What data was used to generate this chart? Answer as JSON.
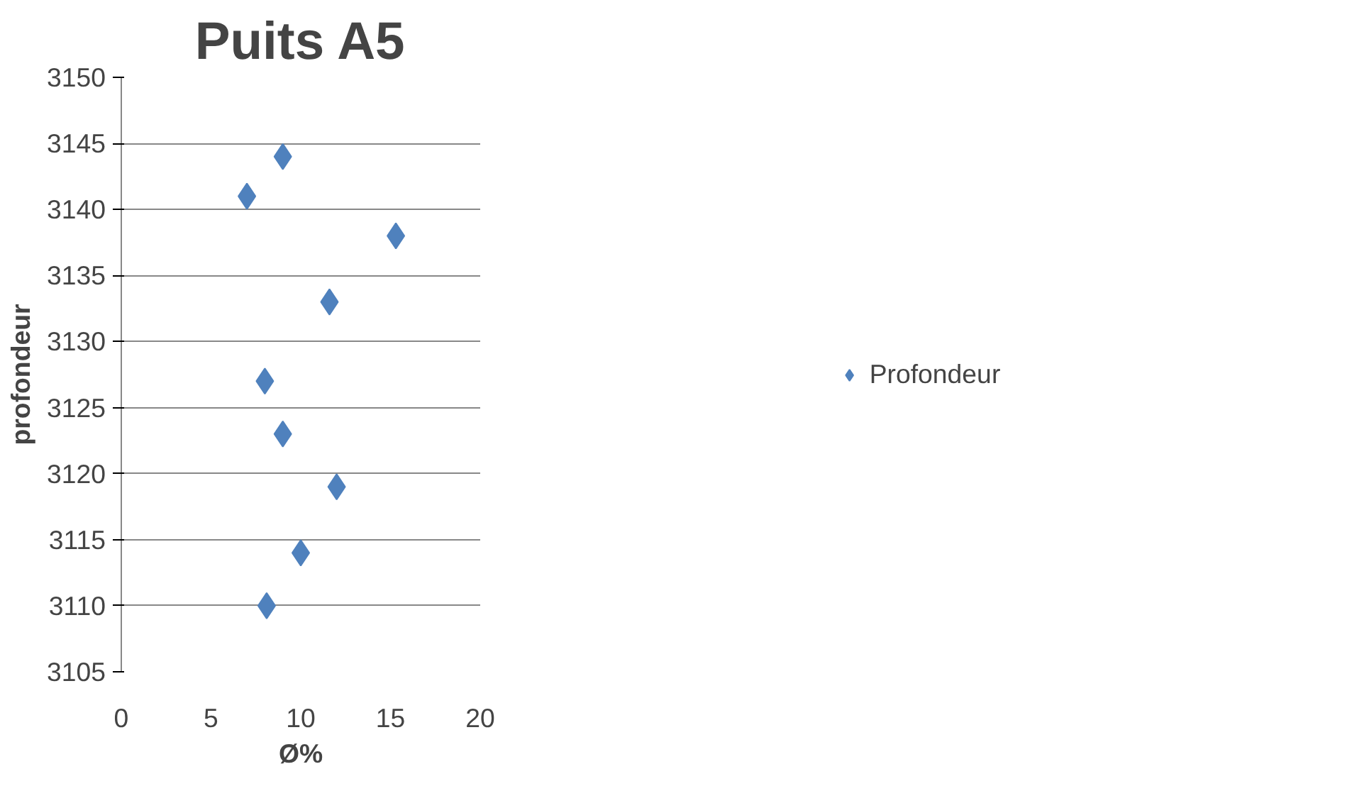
{
  "chart_data": {
    "type": "scatter",
    "title": "Puits A5",
    "xlabel": "Ø%",
    "ylabel": "profondeur",
    "x": [
      9.0,
      7.0,
      15.3,
      11.6,
      8.0,
      9.0,
      12.0,
      10.0,
      8.1
    ],
    "series": [
      {
        "name": "Profondeur",
        "color": "#4f81bd",
        "values": [
          3144,
          3141,
          3138,
          3133,
          3127,
          3123,
          3119,
          3114,
          3110
        ]
      }
    ],
    "xlim": [
      0,
      20
    ],
    "xticks": [
      0,
      5,
      10,
      15,
      20
    ],
    "ylim": [
      3105,
      3150
    ],
    "yticks": [
      3105,
      3110,
      3115,
      3120,
      3125,
      3130,
      3135,
      3140,
      3145,
      3150
    ],
    "grid": "y",
    "legend": "right",
    "marker": "diamond"
  }
}
